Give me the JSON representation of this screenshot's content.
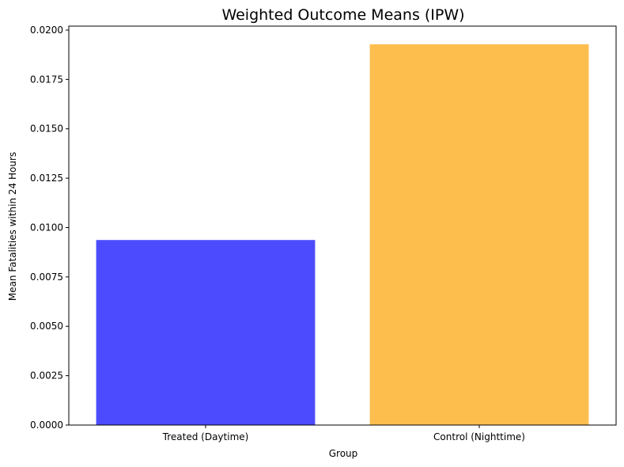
{
  "chart_data": {
    "type": "bar",
    "title": "Weighted Outcome Means (IPW)",
    "xlabel": "Group",
    "ylabel": "Mean Fatalities within 24 Hours",
    "categories": [
      "Treated (Daytime)",
      "Control (Nighttime)"
    ],
    "values": [
      0.00937,
      0.01928
    ],
    "colors": [
      "#4c4cfe",
      "#febe4e"
    ],
    "ylim": [
      0,
      0.0202
    ],
    "yticks": [
      "0.0000",
      "0.0025",
      "0.0050",
      "0.0075",
      "0.0100",
      "0.0125",
      "0.0150",
      "0.0175",
      "0.0200"
    ],
    "grid": false,
    "legend": false
  }
}
